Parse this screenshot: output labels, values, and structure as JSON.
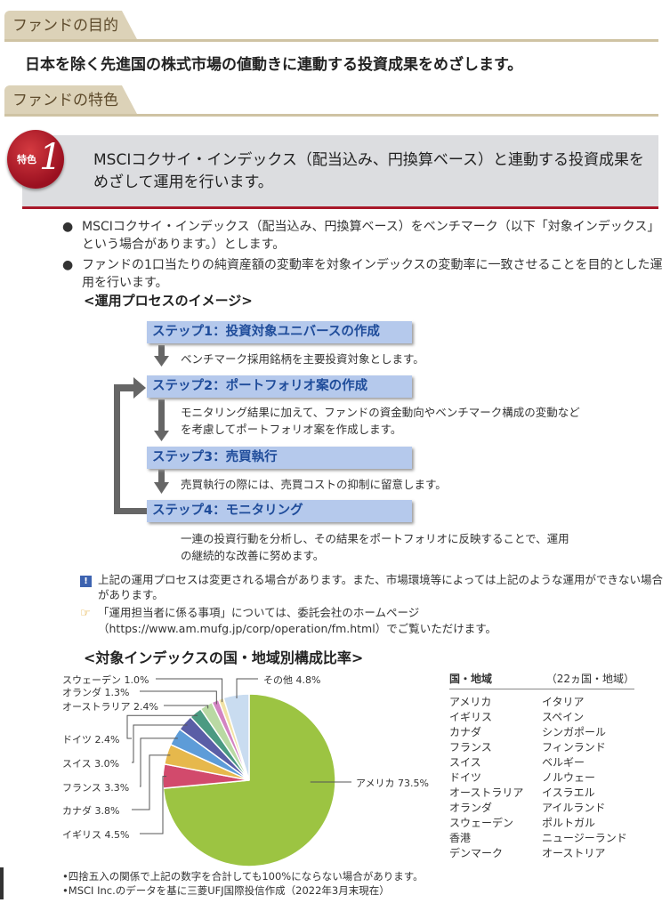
{
  "sections": {
    "purpose_heading": "ファンドの目的",
    "purpose_text": "日本を除く先進国の株式市場の値動きに連動する投資成果をめざします。",
    "features_heading": "ファンドの特色"
  },
  "feature1": {
    "badge_label": "特色",
    "badge_number": "1",
    "title": "MSCIコクサイ・インデックス（配当込み、円換算ベース）と連動する投資成果をめざして運用を行います。",
    "bullets": [
      "MSCIコクサイ・インデックス（配当込み、円換算ベース）をベンチマーク（以下「対象インデックス」という場合があります。）とします。",
      "ファンドの1口当たりの純資産額の変動率を対象インデックスの変動率に一致させることを目的とした運用を行います。"
    ]
  },
  "process": {
    "title": "<運用プロセスのイメージ>",
    "steps": [
      {
        "label": "ステップ1：投資対象ユニバースの作成",
        "desc": "ベンチマーク採用銘柄を主要投資対象とします。"
      },
      {
        "label": "ステップ2：ポートフォリオ案の作成",
        "desc": "モニタリング結果に加えて、ファンドの資金動向やベンチマーク構成の変動などを考慮してポートフォリオ案を作成します。"
      },
      {
        "label": "ステップ3：売買執行",
        "desc": "売買執行の際には、売買コストの抑制に留意します。"
      },
      {
        "label": "ステップ4：モニタリング",
        "desc": "一連の投資行動を分析し、その結果をポートフォリオに反映することで、運用の継続的な改善に努めます。"
      }
    ]
  },
  "notes": [
    {
      "icon": "exclamation-icon",
      "text": "上記の運用プロセスは変更される場合があります。また、市場環境等によっては上記のような運用ができない場合があります。"
    },
    {
      "icon": "pointing-hand-icon",
      "text": "「運用担当者に係る事項」については、委託会社のホームページ（https://www.am.mufg.jp/corp/operation/fm.html）でご覧いただけます。"
    }
  ],
  "chart_data": {
    "type": "pie",
    "title": "<対象インデックスの国・地域別構成比率>",
    "unit": "%",
    "categories": [
      "アメリカ",
      "イギリス",
      "カナダ",
      "フランス",
      "スイス",
      "ドイツ",
      "オーストラリア",
      "オランダ",
      "スウェーデン",
      "その他"
    ],
    "values": [
      73.5,
      4.5,
      3.8,
      3.3,
      3.0,
      2.4,
      2.4,
      1.3,
      1.0,
      4.8
    ],
    "colors": [
      "#9cc442",
      "#d24a6c",
      "#e6b84c",
      "#5d9cd8",
      "#5a5ea6",
      "#4b9a82",
      "#b9d9a3",
      "#d384c2",
      "#f2e3a6",
      "#c9dcf0"
    ],
    "labels": [
      "アメリカ 73.5%",
      "イギリス 4.5%",
      "カナダ 3.8%",
      "フランス 3.3%",
      "スイス 3.0%",
      "ドイツ 2.4%",
      "オーストラリア 2.4%",
      "オランダ 1.3%",
      "スウェーデン 1.0%",
      "その他 4.8%"
    ],
    "start": "12 o'clock, clockwise"
  },
  "country_table": {
    "header": "国・地域",
    "count": "（22ヵ国・地域）",
    "col1": [
      "アメリカ",
      "イギリス",
      "カナダ",
      "フランス",
      "スイス",
      "ドイツ",
      "オーストラリア",
      "オランダ",
      "スウェーデン",
      "香港",
      "デンマーク"
    ],
    "col2": [
      "イタリア",
      "スペイン",
      "シンガポール",
      "フィンランド",
      "ベルギー",
      "ノルウェー",
      "イスラエル",
      "アイルランド",
      "ポルトガル",
      "ニュージーランド",
      "オーストリア"
    ]
  },
  "footnotes": [
    "•四捨五入の関係で上記の数字を合計しても100%にならない場合があります。",
    "•MSCI Inc.のデータを基に三菱UFJ国際投信作成（2022年3月末現在）"
  ]
}
